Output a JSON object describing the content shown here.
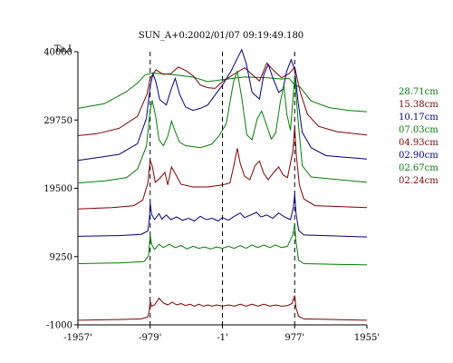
{
  "chart_data": {
    "type": "line",
    "title": "SUN_A+0:2002/01/07 09:19:49.180",
    "ylabel": "Ta,I",
    "x_ticks": [
      "-1957'",
      "-979'",
      "-1'",
      "977'",
      "1955'"
    ],
    "x_tick_values": [
      -1957,
      -979,
      -1,
      977,
      1955
    ],
    "y_ticks": [
      "40000",
      "29750",
      "19500",
      "9250",
      "-1000"
    ],
    "y_tick_values": [
      40000,
      29750,
      19500,
      9250,
      -1000
    ],
    "xlim": [
      -1957,
      1955
    ],
    "ylim": [
      -1000,
      40000
    ],
    "markers_x": [
      -979,
      -1,
      977
    ],
    "grid": false,
    "legend_position": "right",
    "series": [
      {
        "name": "28.71cm",
        "color": "#008000",
        "values": [
          [
            -1957,
            31500
          ],
          [
            -1600,
            32200
          ],
          [
            -1300,
            34000
          ],
          [
            -1150,
            35300
          ],
          [
            -1050,
            36500
          ],
          [
            -950,
            36800
          ],
          [
            -700,
            36600
          ],
          [
            -400,
            36200
          ],
          [
            -200,
            35500
          ],
          [
            0,
            35800
          ],
          [
            300,
            36200
          ],
          [
            600,
            36100
          ],
          [
            800,
            35900
          ],
          [
            900,
            36000
          ],
          [
            977,
            35000
          ],
          [
            1050,
            34700
          ],
          [
            1200,
            32600
          ],
          [
            1450,
            31600
          ],
          [
            1700,
            31200
          ],
          [
            1955,
            31000
          ]
        ]
      },
      {
        "name": "15.38cm",
        "color": "#800000",
        "values": [
          [
            -1957,
            27400
          ],
          [
            -1700,
            27700
          ],
          [
            -1400,
            28500
          ],
          [
            -1150,
            30300
          ],
          [
            -1020,
            33700
          ],
          [
            -980,
            36000
          ],
          [
            -900,
            37300
          ],
          [
            -800,
            36600
          ],
          [
            -700,
            36700
          ],
          [
            -600,
            37700
          ],
          [
            -500,
            37200
          ],
          [
            -400,
            36400
          ],
          [
            -300,
            35000
          ],
          [
            -200,
            34600
          ],
          [
            -100,
            34500
          ],
          [
            0,
            35500
          ],
          [
            150,
            36600
          ],
          [
            300,
            37600
          ],
          [
            400,
            36600
          ],
          [
            500,
            35600
          ],
          [
            600,
            38300
          ],
          [
            700,
            37100
          ],
          [
            800,
            36100
          ],
          [
            900,
            36700
          ],
          [
            977,
            37700
          ],
          [
            1050,
            34000
          ],
          [
            1150,
            30600
          ],
          [
            1300,
            28800
          ],
          [
            1550,
            28000
          ],
          [
            1955,
            27500
          ]
        ]
      },
      {
        "name": "10.17cm",
        "color": "#000080",
        "values": [
          [
            -1957,
            23700
          ],
          [
            -1700,
            24100
          ],
          [
            -1400,
            24600
          ],
          [
            -1150,
            26200
          ],
          [
            -1030,
            30000
          ],
          [
            -980,
            34700
          ],
          [
            -940,
            36700
          ],
          [
            -900,
            35400
          ],
          [
            -850,
            32800
          ],
          [
            -760,
            32000
          ],
          [
            -700,
            34200
          ],
          [
            -640,
            36000
          ],
          [
            -580,
            33600
          ],
          [
            -500,
            31700
          ],
          [
            -400,
            31200
          ],
          [
            -300,
            31500
          ],
          [
            -200,
            32000
          ],
          [
            -100,
            33500
          ],
          [
            0,
            35000
          ],
          [
            120,
            37200
          ],
          [
            200,
            39000
          ],
          [
            260,
            40300
          ],
          [
            320,
            38300
          ],
          [
            400,
            33900
          ],
          [
            500,
            32900
          ],
          [
            560,
            36600
          ],
          [
            620,
            38100
          ],
          [
            680,
            36100
          ],
          [
            760,
            33900
          ],
          [
            820,
            34400
          ],
          [
            870,
            37100
          ],
          [
            930,
            38800
          ],
          [
            977,
            37300
          ],
          [
            1020,
            32700
          ],
          [
            1080,
            27900
          ],
          [
            1200,
            25600
          ],
          [
            1400,
            24400
          ],
          [
            1955,
            23900
          ]
        ]
      },
      {
        "name": "07.03cm",
        "color": "#008000",
        "values": [
          [
            -1957,
            20300
          ],
          [
            -1600,
            20600
          ],
          [
            -1300,
            21100
          ],
          [
            -1150,
            22400
          ],
          [
            -1030,
            25800
          ],
          [
            -980,
            31100
          ],
          [
            -950,
            32700
          ],
          [
            -900,
            30000
          ],
          [
            -860,
            26800
          ],
          [
            -800,
            25900
          ],
          [
            -740,
            27300
          ],
          [
            -690,
            29600
          ],
          [
            -640,
            28000
          ],
          [
            -580,
            26400
          ],
          [
            -500,
            25900
          ],
          [
            -300,
            25600
          ],
          [
            -150,
            26100
          ],
          [
            -50,
            27300
          ],
          [
            50,
            29200
          ],
          [
            150,
            35500
          ],
          [
            200,
            37100
          ],
          [
            260,
            33100
          ],
          [
            330,
            27500
          ],
          [
            400,
            26800
          ],
          [
            470,
            29900
          ],
          [
            530,
            31100
          ],
          [
            590,
            29200
          ],
          [
            660,
            26900
          ],
          [
            720,
            27800
          ],
          [
            780,
            32300
          ],
          [
            830,
            35000
          ],
          [
            870,
            30700
          ],
          [
            920,
            28200
          ],
          [
            977,
            36200
          ],
          [
            1020,
            30000
          ],
          [
            1080,
            22900
          ],
          [
            1200,
            21200
          ],
          [
            1955,
            20400
          ]
        ]
      },
      {
        "name": "04.93cm",
        "color": "#800000",
        "values": [
          [
            -1957,
            16400
          ],
          [
            -1500,
            16600
          ],
          [
            -1200,
            16900
          ],
          [
            -1080,
            17700
          ],
          [
            -1010,
            20300
          ],
          [
            -979,
            23700
          ],
          [
            -950,
            22800
          ],
          [
            -910,
            20400
          ],
          [
            -850,
            21000
          ],
          [
            -780,
            21900
          ],
          [
            -740,
            20000
          ],
          [
            -690,
            22700
          ],
          [
            -640,
            21700
          ],
          [
            -560,
            20100
          ],
          [
            -400,
            19700
          ],
          [
            -200,
            19700
          ],
          [
            0,
            20000
          ],
          [
            100,
            20300
          ],
          [
            150,
            22700
          ],
          [
            200,
            25500
          ],
          [
            240,
            23200
          ],
          [
            300,
            21300
          ],
          [
            370,
            20800
          ],
          [
            440,
            22900
          ],
          [
            500,
            23600
          ],
          [
            560,
            21700
          ],
          [
            620,
            20800
          ],
          [
            700,
            22000
          ],
          [
            760,
            22700
          ],
          [
            820,
            21500
          ],
          [
            880,
            21100
          ],
          [
            950,
            24900
          ],
          [
            977,
            28700
          ],
          [
            1000,
            24400
          ],
          [
            1040,
            20000
          ],
          [
            1100,
            17900
          ],
          [
            1250,
            16900
          ],
          [
            1955,
            16600
          ]
        ]
      },
      {
        "name": "02.90cm",
        "color": "#000080",
        "values": [
          [
            -1957,
            12300
          ],
          [
            -1400,
            12400
          ],
          [
            -1100,
            12600
          ],
          [
            -1010,
            13100
          ],
          [
            -990,
            15000
          ],
          [
            -979,
            17300
          ],
          [
            -960,
            15600
          ],
          [
            -920,
            14800
          ],
          [
            -860,
            15700
          ],
          [
            -820,
            14900
          ],
          [
            -760,
            15500
          ],
          [
            -700,
            14800
          ],
          [
            -620,
            15200
          ],
          [
            -540,
            14700
          ],
          [
            -460,
            15000
          ],
          [
            -380,
            14600
          ],
          [
            -300,
            15300
          ],
          [
            -220,
            14800
          ],
          [
            -140,
            15000
          ],
          [
            -60,
            14600
          ],
          [
            0,
            15100
          ],
          [
            80,
            14700
          ],
          [
            160,
            15300
          ],
          [
            240,
            15800
          ],
          [
            300,
            15100
          ],
          [
            380,
            15500
          ],
          [
            460,
            15900
          ],
          [
            520,
            15200
          ],
          [
            600,
            15500
          ],
          [
            680,
            15000
          ],
          [
            760,
            15800
          ],
          [
            840,
            15200
          ],
          [
            920,
            14800
          ],
          [
            960,
            16700
          ],
          [
            977,
            18600
          ],
          [
            995,
            15800
          ],
          [
            1030,
            13200
          ],
          [
            1100,
            12500
          ],
          [
            1955,
            12200
          ]
        ]
      },
      {
        "name": "02.67cm",
        "color": "#008000",
        "values": [
          [
            -1957,
            8200
          ],
          [
            -1400,
            8300
          ],
          [
            -1060,
            8500
          ],
          [
            -1000,
            9400
          ],
          [
            -979,
            12600
          ],
          [
            -960,
            11100
          ],
          [
            -920,
            10300
          ],
          [
            -860,
            11100
          ],
          [
            -800,
            10600
          ],
          [
            -720,
            11100
          ],
          [
            -640,
            10600
          ],
          [
            -560,
            10900
          ],
          [
            -480,
            10400
          ],
          [
            -400,
            10800
          ],
          [
            -320,
            10500
          ],
          [
            -240,
            10700
          ],
          [
            -160,
            10400
          ],
          [
            -80,
            10700
          ],
          [
            0,
            10500
          ],
          [
            80,
            10800
          ],
          [
            160,
            10500
          ],
          [
            240,
            10900
          ],
          [
            320,
            10500
          ],
          [
            400,
            11000
          ],
          [
            480,
            10600
          ],
          [
            560,
            11000
          ],
          [
            640,
            10600
          ],
          [
            720,
            11000
          ],
          [
            800,
            10600
          ],
          [
            880,
            10800
          ],
          [
            950,
            12500
          ],
          [
            977,
            14100
          ],
          [
            995,
            11500
          ],
          [
            1030,
            8700
          ],
          [
            1100,
            8200
          ],
          [
            1955,
            8000
          ]
        ]
      },
      {
        "name": "02.24cm",
        "color": "#800000",
        "values": [
          [
            -1957,
            -300
          ],
          [
            -1400,
            -200
          ],
          [
            -1100,
            -100
          ],
          [
            -1010,
            200
          ],
          [
            -990,
            1300
          ],
          [
            -979,
            2600
          ],
          [
            -960,
            1800
          ],
          [
            -920,
            2000
          ],
          [
            -860,
            3000
          ],
          [
            -800,
            2300
          ],
          [
            -740,
            2000
          ],
          [
            -680,
            2400
          ],
          [
            -620,
            2000
          ],
          [
            -560,
            2200
          ],
          [
            -500,
            1900
          ],
          [
            -440,
            2100
          ],
          [
            -380,
            1800
          ],
          [
            -320,
            2100
          ],
          [
            -260,
            1800
          ],
          [
            -200,
            2000
          ],
          [
            -140,
            1800
          ],
          [
            -80,
            2000
          ],
          [
            0,
            1800
          ],
          [
            80,
            2000
          ],
          [
            160,
            1800
          ],
          [
            240,
            2100
          ],
          [
            320,
            1800
          ],
          [
            400,
            2100
          ],
          [
            480,
            1800
          ],
          [
            560,
            2100
          ],
          [
            640,
            1800
          ],
          [
            720,
            2000
          ],
          [
            800,
            1800
          ],
          [
            880,
            1900
          ],
          [
            940,
            2200
          ],
          [
            977,
            3400
          ],
          [
            995,
            1600
          ],
          [
            1030,
            300
          ],
          [
            1100,
            -100
          ],
          [
            1955,
            -300
          ]
        ]
      }
    ]
  }
}
